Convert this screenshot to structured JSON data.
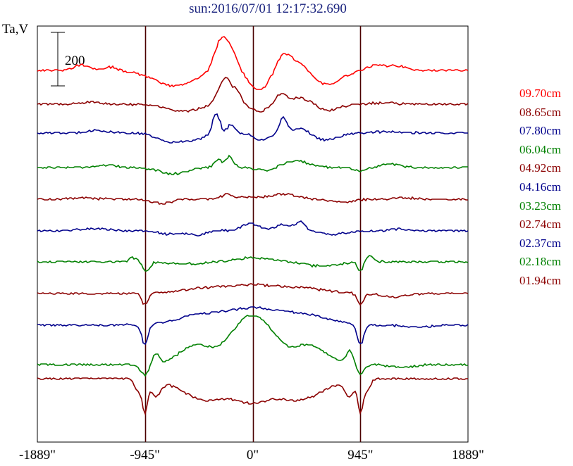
{
  "chart_data": {
    "type": "line",
    "title": "sun:2016/07/01 12:17:32.690",
    "ylabel": "Ta,V",
    "xlim": [
      -1889,
      1889
    ],
    "x_ticks": [
      {
        "value": -1889,
        "label": "-1889\""
      },
      {
        "value": -945,
        "label": "-945\""
      },
      {
        "value": 0,
        "label": "0\""
      },
      {
        "value": 945,
        "label": "945\""
      },
      {
        "value": 1889,
        "label": "1889\""
      }
    ],
    "vertical_lines": [
      -945,
      0,
      945
    ],
    "scale_bar": {
      "value": 200,
      "label": "200"
    },
    "grid": false,
    "legend_position": "right",
    "series": [
      {
        "name": "09.70cm",
        "color": "#ff0000",
        "offset": 100,
        "features": [
          [
            -1500,
            8,
            90
          ],
          [
            -1240,
            5,
            60
          ],
          [
            -690,
            -22,
            250
          ],
          [
            -270,
            48,
            85
          ],
          [
            -170,
            18,
            60
          ],
          [
            60,
            -28,
            120
          ],
          [
            270,
            22,
            90
          ],
          [
            420,
            14,
            120
          ],
          [
            640,
            -20,
            190
          ],
          [
            1100,
            8,
            120
          ],
          [
            1290,
            6,
            90
          ]
        ]
      },
      {
        "name": "08.65cm",
        "color": "#8b0000",
        "offset": 148,
        "features": [
          [
            -1400,
            3,
            120
          ],
          [
            -610,
            -10,
            210
          ],
          [
            -240,
            38,
            85
          ],
          [
            -130,
            12,
            50
          ],
          [
            60,
            -10,
            100
          ],
          [
            250,
            14,
            60
          ],
          [
            430,
            10,
            150
          ],
          [
            640,
            -10,
            150
          ],
          [
            1150,
            2,
            150
          ]
        ]
      },
      {
        "name": "07.80cm",
        "color": "#00008b",
        "offset": 189,
        "features": [
          [
            -1380,
            4,
            120
          ],
          [
            -720,
            -13,
            160
          ],
          [
            -500,
            -8,
            120
          ],
          [
            -320,
            28,
            45
          ],
          [
            -190,
            12,
            45
          ],
          [
            80,
            -10,
            100
          ],
          [
            270,
            22,
            45
          ],
          [
            430,
            8,
            100
          ],
          [
            640,
            -10,
            160
          ],
          [
            1150,
            2,
            150
          ]
        ]
      },
      {
        "name": "06.04cm",
        "color": "#008000",
        "offset": 238,
        "features": [
          [
            -1300,
            3,
            150
          ],
          [
            -700,
            -9,
            160
          ],
          [
            -300,
            12,
            45
          ],
          [
            -200,
            16,
            45
          ],
          [
            120,
            -4,
            120
          ],
          [
            380,
            10,
            150
          ],
          [
            950,
            -5,
            80
          ],
          [
            1200,
            5,
            120
          ]
        ]
      },
      {
        "name": "04.92cm",
        "color": "#8b0000",
        "offset": 283,
        "features": [
          [
            -1500,
            2,
            150
          ],
          [
            -800,
            -6,
            120
          ],
          [
            -230,
            6,
            60
          ],
          [
            -30,
            3,
            200
          ],
          [
            280,
            7,
            150
          ],
          [
            800,
            -5,
            120
          ],
          [
            1350,
            2,
            120
          ]
        ]
      },
      {
        "name": "04.16cm",
        "color": "#00008b",
        "offset": 328,
        "features": [
          [
            -1400,
            3,
            180
          ],
          [
            -700,
            -5,
            150
          ],
          [
            -480,
            -6,
            80
          ],
          [
            -20,
            10,
            120
          ],
          [
            280,
            9,
            100
          ],
          [
            420,
            12,
            60
          ],
          [
            700,
            -5,
            150
          ],
          [
            1300,
            3,
            120
          ]
        ]
      },
      {
        "name": "03.23cm",
        "color": "#008000",
        "offset": 372,
        "features": [
          [
            -1050,
            6,
            45
          ],
          [
            -930,
            -14,
            40
          ],
          [
            -600,
            -3,
            200
          ],
          [
            0,
            6,
            200
          ],
          [
            600,
            -6,
            200
          ],
          [
            945,
            -13,
            35
          ],
          [
            1030,
            9,
            45
          ]
        ]
      },
      {
        "name": "02.74cm",
        "color": "#8b0000",
        "offset": 417,
        "features": [
          [
            -945,
            -16,
            40
          ],
          [
            -400,
            8,
            300
          ],
          [
            0,
            10,
            250
          ],
          [
            400,
            8,
            300
          ],
          [
            945,
            -16,
            40
          ],
          [
            1250,
            -5,
            150
          ]
        ]
      },
      {
        "name": "02.37cm",
        "color": "#00008b",
        "offset": 462,
        "features": [
          [
            -945,
            -28,
            40
          ],
          [
            -450,
            14,
            300
          ],
          [
            0,
            22,
            300
          ],
          [
            450,
            14,
            300
          ],
          [
            945,
            -28,
            40
          ],
          [
            1450,
            -3,
            150
          ]
        ]
      },
      {
        "name": "02.18cm",
        "color": "#008000",
        "offset": 518,
        "features": [
          [
            -945,
            -15,
            50
          ],
          [
            -850,
            14,
            40
          ],
          [
            -500,
            28,
            200
          ],
          [
            -100,
            45,
            200
          ],
          [
            100,
            45,
            200
          ],
          [
            500,
            28,
            200
          ],
          [
            850,
            18,
            45
          ],
          [
            945,
            -14,
            45
          ],
          [
            1300,
            -4,
            150
          ]
        ]
      },
      {
        "name": "01.94cm",
        "color": "#8b0000",
        "offset": 538,
        "features": [
          [
            -1000,
            -18,
            40
          ],
          [
            -945,
            -45,
            30
          ],
          [
            -850,
            -22,
            60
          ],
          [
            -400,
            -30,
            300
          ],
          [
            0,
            -25,
            200
          ],
          [
            400,
            -30,
            300
          ],
          [
            850,
            -22,
            60
          ],
          [
            945,
            -45,
            30
          ],
          [
            1000,
            -18,
            40
          ]
        ]
      }
    ]
  }
}
